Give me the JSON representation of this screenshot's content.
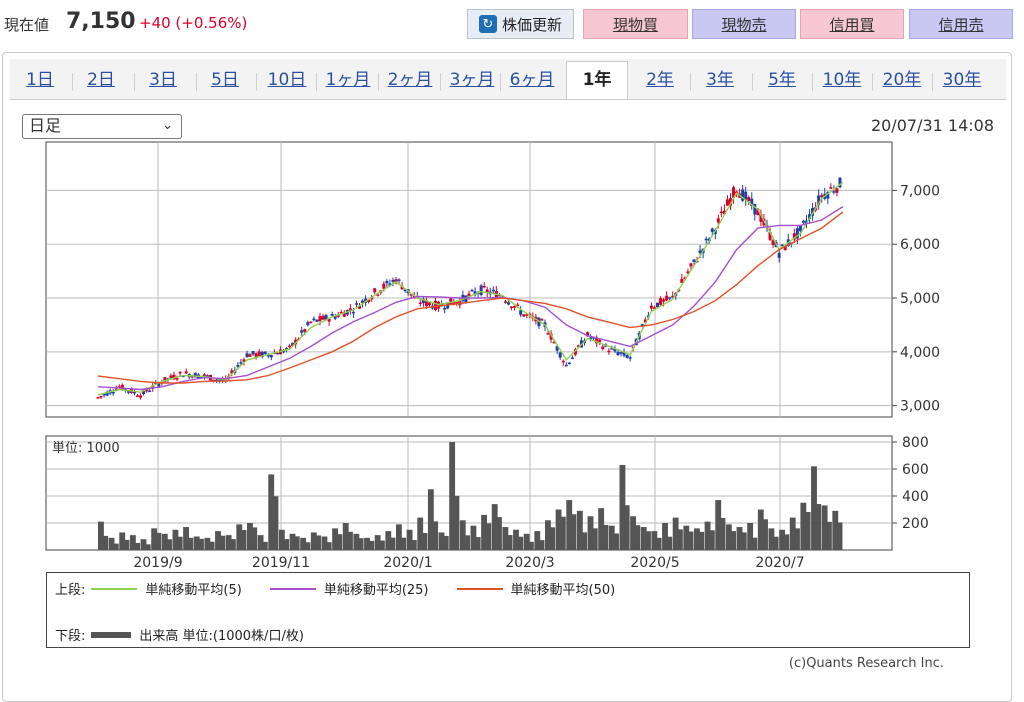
{
  "header": {
    "price_label": "現在値",
    "price_value": "7,150",
    "price_change": "+40 (+0.56%)",
    "refresh_label": "株価更新",
    "buttons": [
      "現物買",
      "現物売",
      "信用買",
      "信用売"
    ]
  },
  "tabs": [
    {
      "label": "1日"
    },
    {
      "label": "2日"
    },
    {
      "label": "3日"
    },
    {
      "label": "5日"
    },
    {
      "label": "10日"
    },
    {
      "label": "1ヶ月"
    },
    {
      "label": "2ヶ月"
    },
    {
      "label": "3ヶ月"
    },
    {
      "label": "6ヶ月"
    },
    {
      "label": "1年",
      "active": true
    },
    {
      "label": "2年"
    },
    {
      "label": "3年"
    },
    {
      "label": "5年"
    },
    {
      "label": "10年"
    },
    {
      "label": "20年"
    },
    {
      "label": "30年"
    }
  ],
  "controls": {
    "period_select": "日足",
    "timestamp": "20/07/31 14:08"
  },
  "colors": {
    "up": "#d9002b",
    "down": "#1f3fa8",
    "ma5": "#8fd14f",
    "ma25": "#a64fd1",
    "ma50": "#e0522a",
    "volume": "#555555"
  },
  "chart_data": [
    {
      "type": "candlestick",
      "interval": "daily",
      "y_ticks": [
        "3,000",
        "4,000",
        "5,000",
        "6,000",
        "7,000"
      ],
      "ylim": [
        2900,
        7900
      ],
      "x_ticks": [
        "2019/9",
        "2019/11",
        "2020/1",
        "2020/3",
        "2020/5",
        "2020/7"
      ],
      "close_approx": [
        {
          "x": "2019/8 start",
          "y": 3150
        },
        {
          "x": "2019/8 mid",
          "y": 3350
        },
        {
          "x": "2019/8 end",
          "y": 3200
        },
        {
          "x": "2019/9 start",
          "y": 3450
        },
        {
          "x": "2019/9 mid",
          "y": 3600
        },
        {
          "x": "2019/9 end",
          "y": 3550
        },
        {
          "x": "2019/10 start",
          "y": 3450
        },
        {
          "x": "2019/10 mid",
          "y": 3950
        },
        {
          "x": "2019/10 end",
          "y": 3950
        },
        {
          "x": "2019/11 start",
          "y": 4050
        },
        {
          "x": "2019/11 mid",
          "y": 4550
        },
        {
          "x": "2019/11 end",
          "y": 4650
        },
        {
          "x": "2019/12 start",
          "y": 4800
        },
        {
          "x": "2019/12 mid",
          "y": 5100
        },
        {
          "x": "2019/12 end",
          "y": 5350
        },
        {
          "x": "2020/1 start",
          "y": 4950
        },
        {
          "x": "2020/1 mid",
          "y": 4850
        },
        {
          "x": "2020/1 end",
          "y": 4950
        },
        {
          "x": "2020/2 start",
          "y": 5150
        },
        {
          "x": "2020/2 mid",
          "y": 5050
        },
        {
          "x": "2020/2 end",
          "y": 4700
        },
        {
          "x": "2020/3 start",
          "y": 4500
        },
        {
          "x": "2020/3 mid",
          "y": 3750
        },
        {
          "x": "2020/3 end",
          "y": 4300
        },
        {
          "x": "2020/4 start",
          "y": 4050
        },
        {
          "x": "2020/4 mid",
          "y": 3900
        },
        {
          "x": "2020/4 end",
          "y": 4850
        },
        {
          "x": "2020/5 start",
          "y": 5000
        },
        {
          "x": "2020/5 mid",
          "y": 5650
        },
        {
          "x": "2020/5 end",
          "y": 6300
        },
        {
          "x": "2020/6 start",
          "y": 7050
        },
        {
          "x": "2020/6 mid",
          "y": 6600
        },
        {
          "x": "2020/6 end",
          "y": 5850
        },
        {
          "x": "2020/7 start",
          "y": 6250
        },
        {
          "x": "2020/7 mid",
          "y": 6900
        },
        {
          "x": "2020/7 end",
          "y": 7150
        }
      ],
      "series": [
        {
          "name": "単純移動平均(5)",
          "values_approx": [
            3200,
            3300,
            3250,
            3450,
            3560,
            3540,
            3480,
            3850,
            3950,
            4050,
            4450,
            4650,
            4780,
            5050,
            5300,
            5000,
            4880,
            4950,
            5120,
            5050,
            4750,
            4500,
            3850,
            4250,
            4100,
            3950,
            4750,
            4980,
            5600,
            6250,
            6950,
            6650,
            5900,
            6200,
            6850,
            7150
          ]
        },
        {
          "name": "単純移動平均(25)",
          "values_approx": [
            3350,
            3330,
            3300,
            3350,
            3450,
            3520,
            3500,
            3560,
            3720,
            3880,
            4100,
            4350,
            4560,
            4730,
            4920,
            5030,
            5020,
            5000,
            5000,
            5010,
            4950,
            4830,
            4500,
            4300,
            4200,
            4100,
            4300,
            4500,
            4850,
            5300,
            5900,
            6300,
            6350,
            6350,
            6450,
            6700
          ]
        },
        {
          "name": "単純移動平均(50)",
          "values_approx": [
            3550,
            3500,
            3450,
            3420,
            3420,
            3450,
            3460,
            3480,
            3560,
            3700,
            3850,
            4000,
            4200,
            4450,
            4650,
            4800,
            4850,
            4900,
            4950,
            5000,
            4950,
            4900,
            4800,
            4650,
            4550,
            4450,
            4500,
            4600,
            4750,
            4950,
            5250,
            5600,
            5900,
            6100,
            6300,
            6600
          ]
        }
      ]
    },
    {
      "type": "bar",
      "name": "出来高",
      "unit_label": "単位: 1000",
      "y_ticks": [
        "200",
        "400",
        "600",
        "800"
      ],
      "ylim": [
        0,
        800
      ],
      "values_approx": [
        210,
        90,
        130,
        110,
        80,
        160,
        120,
        150,
        170,
        100,
        90,
        140,
        110,
        190,
        200,
        110,
        560,
        150,
        120,
        90,
        130,
        100,
        160,
        200,
        120,
        90,
        110,
        140,
        190,
        150,
        240,
        450,
        130,
        800,
        220,
        180,
        260,
        340,
        170,
        150,
        120,
        140,
        220,
        300,
        370,
        290,
        250,
        310,
        180,
        630,
        250,
        170,
        140,
        200,
        240,
        180,
        160,
        210,
        370,
        190,
        170,
        200,
        300,
        160,
        150,
        240,
        350,
        620,
        330,
        290
      ]
    }
  ],
  "legend": {
    "upper_label": "上段:",
    "lower_label": "下段:",
    "ma5_label": "単純移動平均(5)",
    "ma25_label": "単純移動平均(25)",
    "ma50_label": "単純移動平均(50)",
    "volume_label": "出来高 単位:(1000株/口/枚)"
  },
  "copyright": "(c)Quants Research Inc."
}
